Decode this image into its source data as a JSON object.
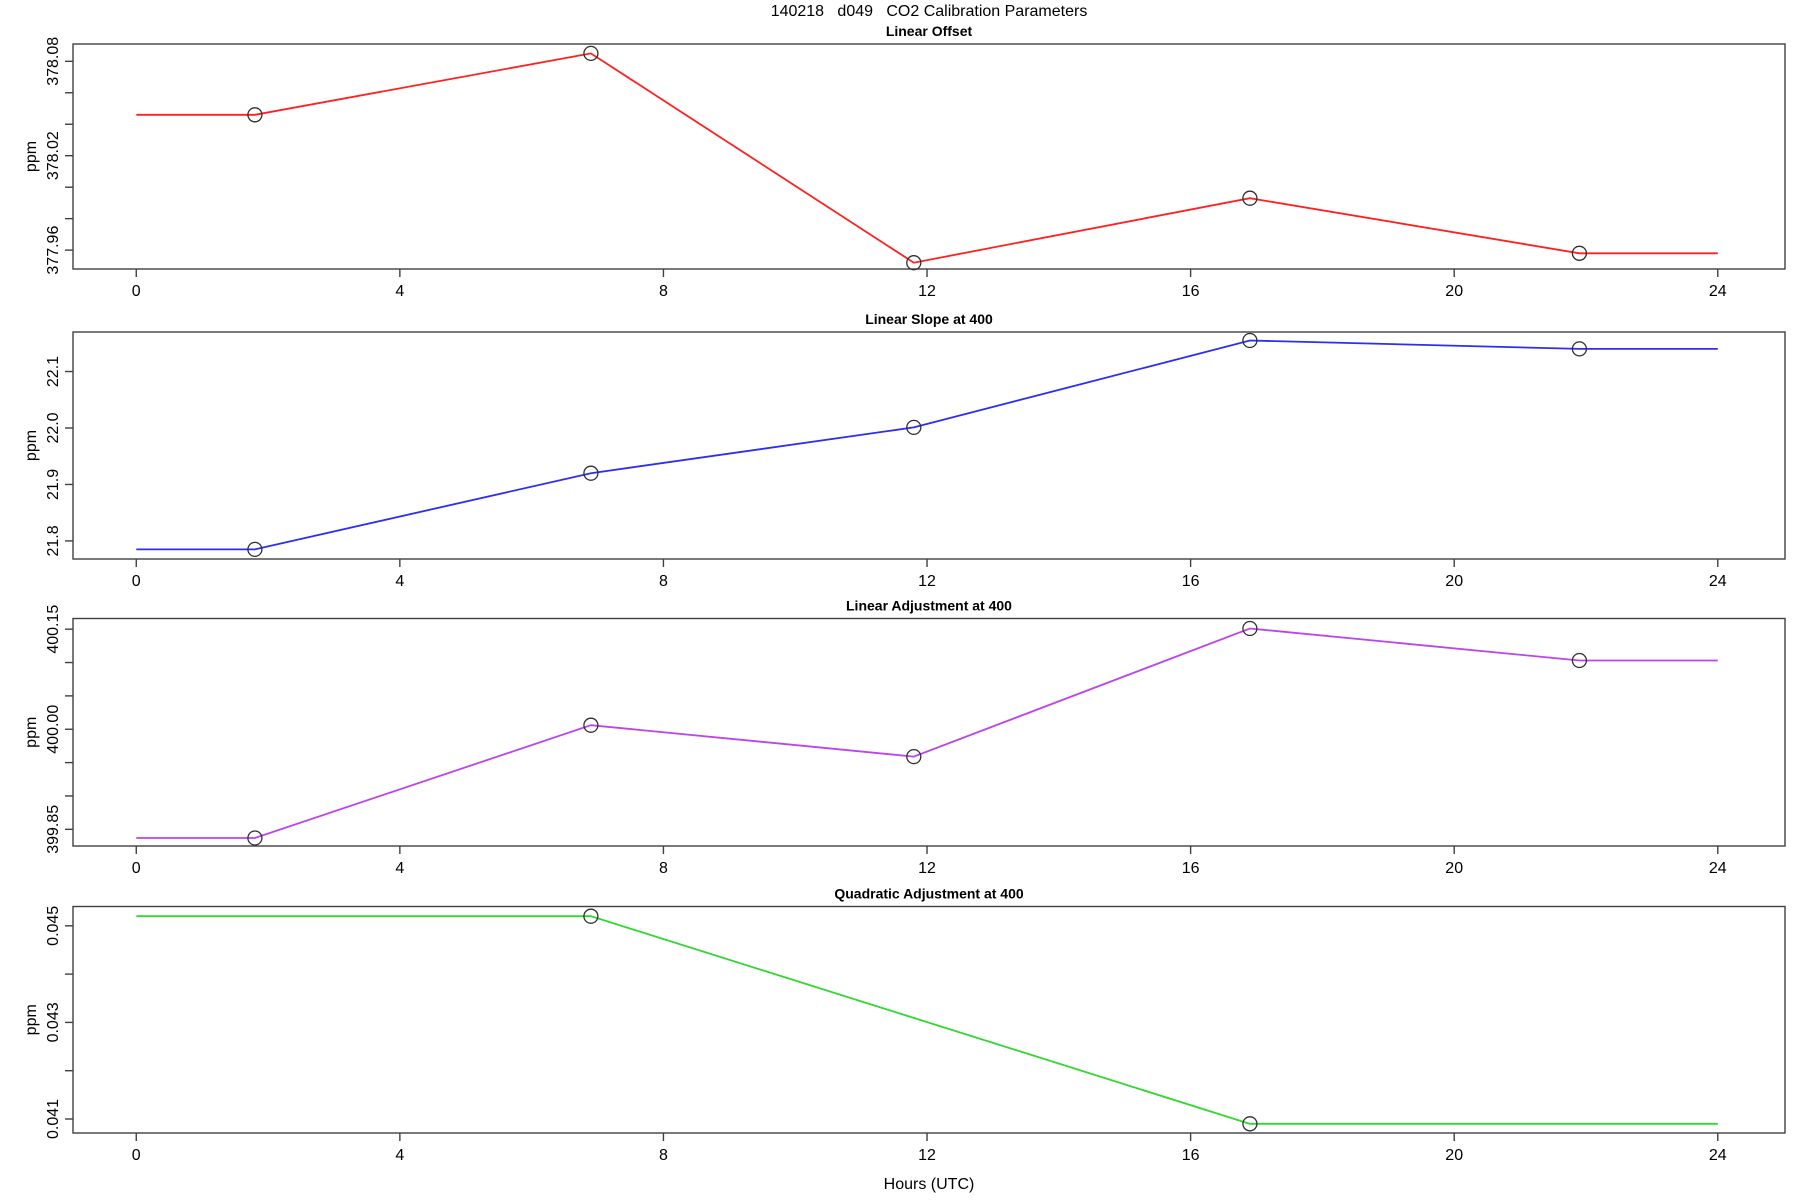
{
  "title": "140218   d049   CO2 Calibration Parameters",
  "chart_data": {
    "type": "line",
    "x_axis": {
      "label": "Hours (UTC)",
      "ticks": [
        0,
        4,
        8,
        12,
        16,
        20,
        24
      ],
      "range": [
        -0.96,
        25.02
      ]
    },
    "panels": [
      {
        "title": "Linear Offset",
        "ylabel": "ppm",
        "color": "#ff2020",
        "ylim": [
          377.948,
          378.091
        ],
        "yticks": [
          377.96,
          377.98,
          378.0,
          378.02,
          378.04,
          378.06,
          378.08
        ],
        "ytick_labels": [
          "377.96",
          "",
          "",
          "378.02",
          "",
          "",
          "378.08"
        ],
        "x": [
          1.8,
          6.9,
          11.8,
          16.9,
          21.9
        ],
        "y": [
          378.046,
          378.085,
          377.952,
          377.993,
          377.958
        ],
        "extend": [
          0,
          24
        ]
      },
      {
        "title": "Linear Slope at 400",
        "ylabel": "ppm",
        "color": "#2d2df5",
        "ylim": [
          21.768,
          22.17
        ],
        "yticks": [
          21.8,
          21.9,
          22.0,
          22.1
        ],
        "ytick_labels": [
          "21.8",
          "21.9",
          "22.0",
          "22.1"
        ],
        "x": [
          1.8,
          6.9,
          11.8,
          16.9,
          21.9
        ],
        "y": [
          21.785,
          21.92,
          22.001,
          22.155,
          22.14
        ],
        "extend": [
          0,
          24
        ]
      },
      {
        "title": "Linear Adjustment at 400",
        "ylabel": "ppm",
        "color": "#bb44ee",
        "ylim": [
          399.825,
          400.166
        ],
        "yticks": [
          399.85,
          399.9,
          399.95,
          400.0,
          400.05,
          400.1,
          400.15
        ],
        "ytick_labels": [
          "399.85",
          "",
          "",
          "400.00",
          "",
          "",
          "400.15"
        ],
        "x": [
          1.8,
          6.9,
          11.8,
          16.9,
          21.9
        ],
        "y": [
          399.837,
          400.006,
          399.959,
          400.151,
          400.103
        ],
        "extend": [
          0,
          24
        ]
      },
      {
        "title": "Quadratic Adjustment at 400",
        "ylabel": "ppm",
        "color": "#30d830",
        "ylim": [
          0.04071,
          0.0454
        ],
        "yticks": [
          0.041,
          0.042,
          0.043,
          0.044,
          0.045
        ],
        "ytick_labels": [
          "0.041",
          "",
          "0.043",
          "",
          "0.045"
        ],
        "x": [
          6.9,
          16.9
        ],
        "y": [
          0.0452,
          0.0409
        ],
        "extend": [
          0,
          24
        ]
      }
    ]
  }
}
